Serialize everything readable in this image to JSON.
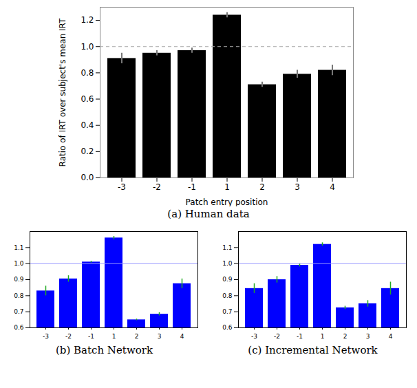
{
  "chart_data": [
    {
      "type": "bar",
      "title": "(a) Human data",
      "x_label": "Patch entry position",
      "y_label": "Ratio of IRT over subject's mean IRT",
      "categories": [
        "-3",
        "-2",
        "-1",
        "1",
        "2",
        "3",
        "4"
      ],
      "values": [
        0.91,
        0.95,
        0.97,
        1.24,
        0.71,
        0.79,
        0.82
      ],
      "errors": [
        0.04,
        0.02,
        0.02,
        0.02,
        0.02,
        0.03,
        0.04
      ],
      "color": "#000000",
      "reference_line": 1.0,
      "line_style": "dashed",
      "ylim": [
        0,
        1.3
      ],
      "yticks": [
        {
          "value": 0,
          "label": "0.0"
        },
        0.2,
        0.4,
        0.6,
        0.8,
        {
          "value": 1,
          "label": "1.0"
        },
        1.2
      ],
      "grid": false
    },
    {
      "type": "bar",
      "title": "(b) Batch Network",
      "categories": [
        "-3",
        "-2",
        "-1",
        "1",
        "2",
        "3",
        "4"
      ],
      "values": [
        0.83,
        0.905,
        1.01,
        1.16,
        0.65,
        0.685,
        0.875
      ],
      "errors": [
        0.03,
        0.02,
        0.005,
        0.01,
        0.005,
        0.01,
        0.03
      ],
      "color": "#0000ff",
      "reference_line": 1.0,
      "line_style": "solid",
      "ylim": [
        0.6,
        1.2
      ],
      "yticks": [
        0.6,
        0.7,
        0.8,
        0.9,
        {
          "value": 1,
          "label": "1.0"
        },
        1.1
      ],
      "grid": false
    },
    {
      "type": "bar",
      "title": "(c) Incremental Network",
      "categories": [
        "-3",
        "-2",
        "-1",
        "1",
        "2",
        "3",
        "4"
      ],
      "values": [
        0.845,
        0.9,
        0.99,
        1.12,
        0.725,
        0.75,
        0.845
      ],
      "errors": [
        0.03,
        0.02,
        0.01,
        0.01,
        0.01,
        0.02,
        0.04
      ],
      "color": "#0000ff",
      "reference_line": 1.0,
      "line_style": "solid",
      "ylim": [
        0.6,
        1.2
      ],
      "yticks": [
        0.6,
        0.7,
        0.8,
        0.9,
        {
          "value": 1,
          "label": "1.0"
        },
        1.1
      ],
      "grid": false
    }
  ]
}
